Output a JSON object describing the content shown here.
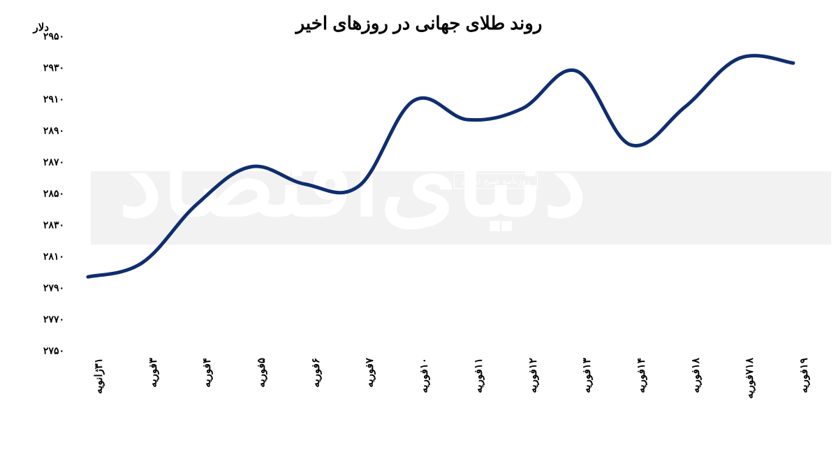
{
  "chart": {
    "type": "line",
    "title": "روند طلای جهانی در روزهای اخیر",
    "y_axis_label": "دلار",
    "ylim": [
      2750,
      2950
    ],
    "ytick_step": 20,
    "y_ticks": [
      "۲۷۵۰",
      "۲۷۷۰",
      "۲۷۹۰",
      "۲۸۱۰",
      "۲۸۳۰",
      "۲۸۵۰",
      "۲۸۷۰",
      "۲۸۹۰",
      "۲۹۱۰",
      "۲۹۳۰",
      "۲۹۵۰"
    ],
    "x_labels": [
      "۳۱ژانویه",
      "۳فوریه",
      "۴فوریه",
      "۵فوریه",
      "۶فوریه",
      "۷فوریه",
      "۱۰فوریه",
      "۱۱فوریه",
      "۱۲فوریه",
      "۱۳فوریه",
      "۱۴فوریه",
      "۱۸فوریه",
      "۷۱۸فوریه",
      "۱۹فوریه"
    ],
    "values": [
      2797,
      2806,
      2843,
      2867,
      2856,
      2855,
      2909,
      2897,
      2904,
      2928,
      2881,
      2905,
      2936,
      2933
    ],
    "line_color": "#0f2e6e",
    "line_width": 5,
    "background_color": "#ffffff",
    "watermark_band_color": "#f2f2f2",
    "watermark_text": "دنیای‌اقتصاد",
    "watermark_small": "روزنامه صبح ایران",
    "tick_color": "#000000",
    "title_fontsize": 26,
    "tick_fontsize": 14
  }
}
